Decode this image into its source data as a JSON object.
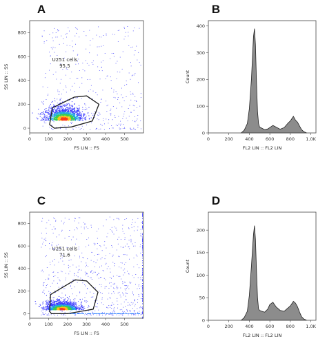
{
  "chart_data": [
    {
      "panel": "A",
      "type": "scatter",
      "xlabel": "FS LIN :: FS",
      "ylabel": "SS LIN :: SS",
      "xlim": [
        0,
        600
      ],
      "ylim": [
        -40,
        900
      ],
      "xticks": [
        0,
        100,
        200,
        300,
        400,
        500
      ],
      "yticks": [
        0,
        200,
        400,
        600,
        800
      ],
      "gate": {
        "name": "U251 cells",
        "percent": "95.5",
        "polygon": [
          [
            105,
            30
          ],
          [
            120,
            170
          ],
          [
            235,
            260
          ],
          [
            300,
            270
          ],
          [
            365,
            200
          ],
          [
            330,
            60
          ],
          [
            220,
            10
          ],
          [
            130,
            0
          ]
        ]
      },
      "population": {
        "center": [
          180,
          80
        ],
        "spread": [
          80,
          60
        ],
        "density": "high",
        "sparse_background": "moderate"
      }
    },
    {
      "panel": "B",
      "type": "area",
      "xlabel": "FL2 LIN :: FL2 LIN",
      "ylabel": "Count",
      "xlim": [
        0,
        1050
      ],
      "ylim": [
        0,
        420
      ],
      "xticks": [
        "0",
        "200",
        "400",
        "600",
        "800",
        "1.0K"
      ],
      "xtick_values": [
        0,
        200,
        400,
        600,
        800,
        1000
      ],
      "yticks": [
        0,
        100,
        200,
        300,
        400
      ],
      "x": [
        320,
        350,
        380,
        400,
        420,
        440,
        450,
        460,
        470,
        480,
        490,
        500,
        520,
        550,
        580,
        600,
        630,
        660,
        700,
        740,
        780,
        800,
        830,
        850,
        870,
        890,
        910,
        930,
        960
      ],
      "y": [
        0,
        10,
        35,
        90,
        200,
        360,
        390,
        330,
        190,
        80,
        35,
        22,
        18,
        12,
        15,
        20,
        28,
        22,
        14,
        20,
        38,
        45,
        62,
        48,
        40,
        26,
        12,
        5,
        0
      ]
    },
    {
      "panel": "C",
      "type": "scatter",
      "xlabel": "FS LIN :: FS",
      "ylabel": "SS LIN :: SS",
      "xlim": [
        0,
        600
      ],
      "ylim": [
        -40,
        900
      ],
      "xticks": [
        0,
        100,
        200,
        300,
        400,
        500
      ],
      "yticks": [
        0,
        200,
        400,
        600,
        800
      ],
      "gate": {
        "name": "U251 cells",
        "percent": "71.6",
        "polygon": [
          [
            105,
            20
          ],
          [
            110,
            170
          ],
          [
            240,
            300
          ],
          [
            300,
            290
          ],
          [
            360,
            190
          ],
          [
            335,
            40
          ],
          [
            200,
            0
          ],
          [
            115,
            0
          ]
        ]
      },
      "population": {
        "center": [
          170,
          45
        ],
        "spread": [
          70,
          40
        ],
        "density": "high",
        "sparse_background": "high"
      }
    },
    {
      "panel": "D",
      "type": "area",
      "xlabel": "FL2 LIN :: FL2 LIN",
      "ylabel": "Count",
      "xlim": [
        0,
        1050
      ],
      "ylim": [
        0,
        240
      ],
      "xticks": [
        "0",
        "200",
        "400",
        "600",
        "800",
        "1.0K"
      ],
      "xtick_values": [
        0,
        200,
        400,
        600,
        800,
        1000
      ],
      "yticks": [
        0,
        50,
        100,
        150,
        200
      ],
      "x": [
        320,
        350,
        380,
        400,
        420,
        440,
        450,
        460,
        470,
        480,
        490,
        500,
        520,
        550,
        580,
        600,
        630,
        660,
        700,
        740,
        780,
        800,
        830,
        850,
        870,
        890,
        910,
        930,
        960
      ],
      "y": [
        0,
        6,
        20,
        55,
        120,
        190,
        210,
        180,
        110,
        50,
        25,
        22,
        20,
        18,
        25,
        35,
        40,
        30,
        22,
        20,
        28,
        32,
        42,
        38,
        30,
        18,
        8,
        3,
        0
      ]
    }
  ]
}
